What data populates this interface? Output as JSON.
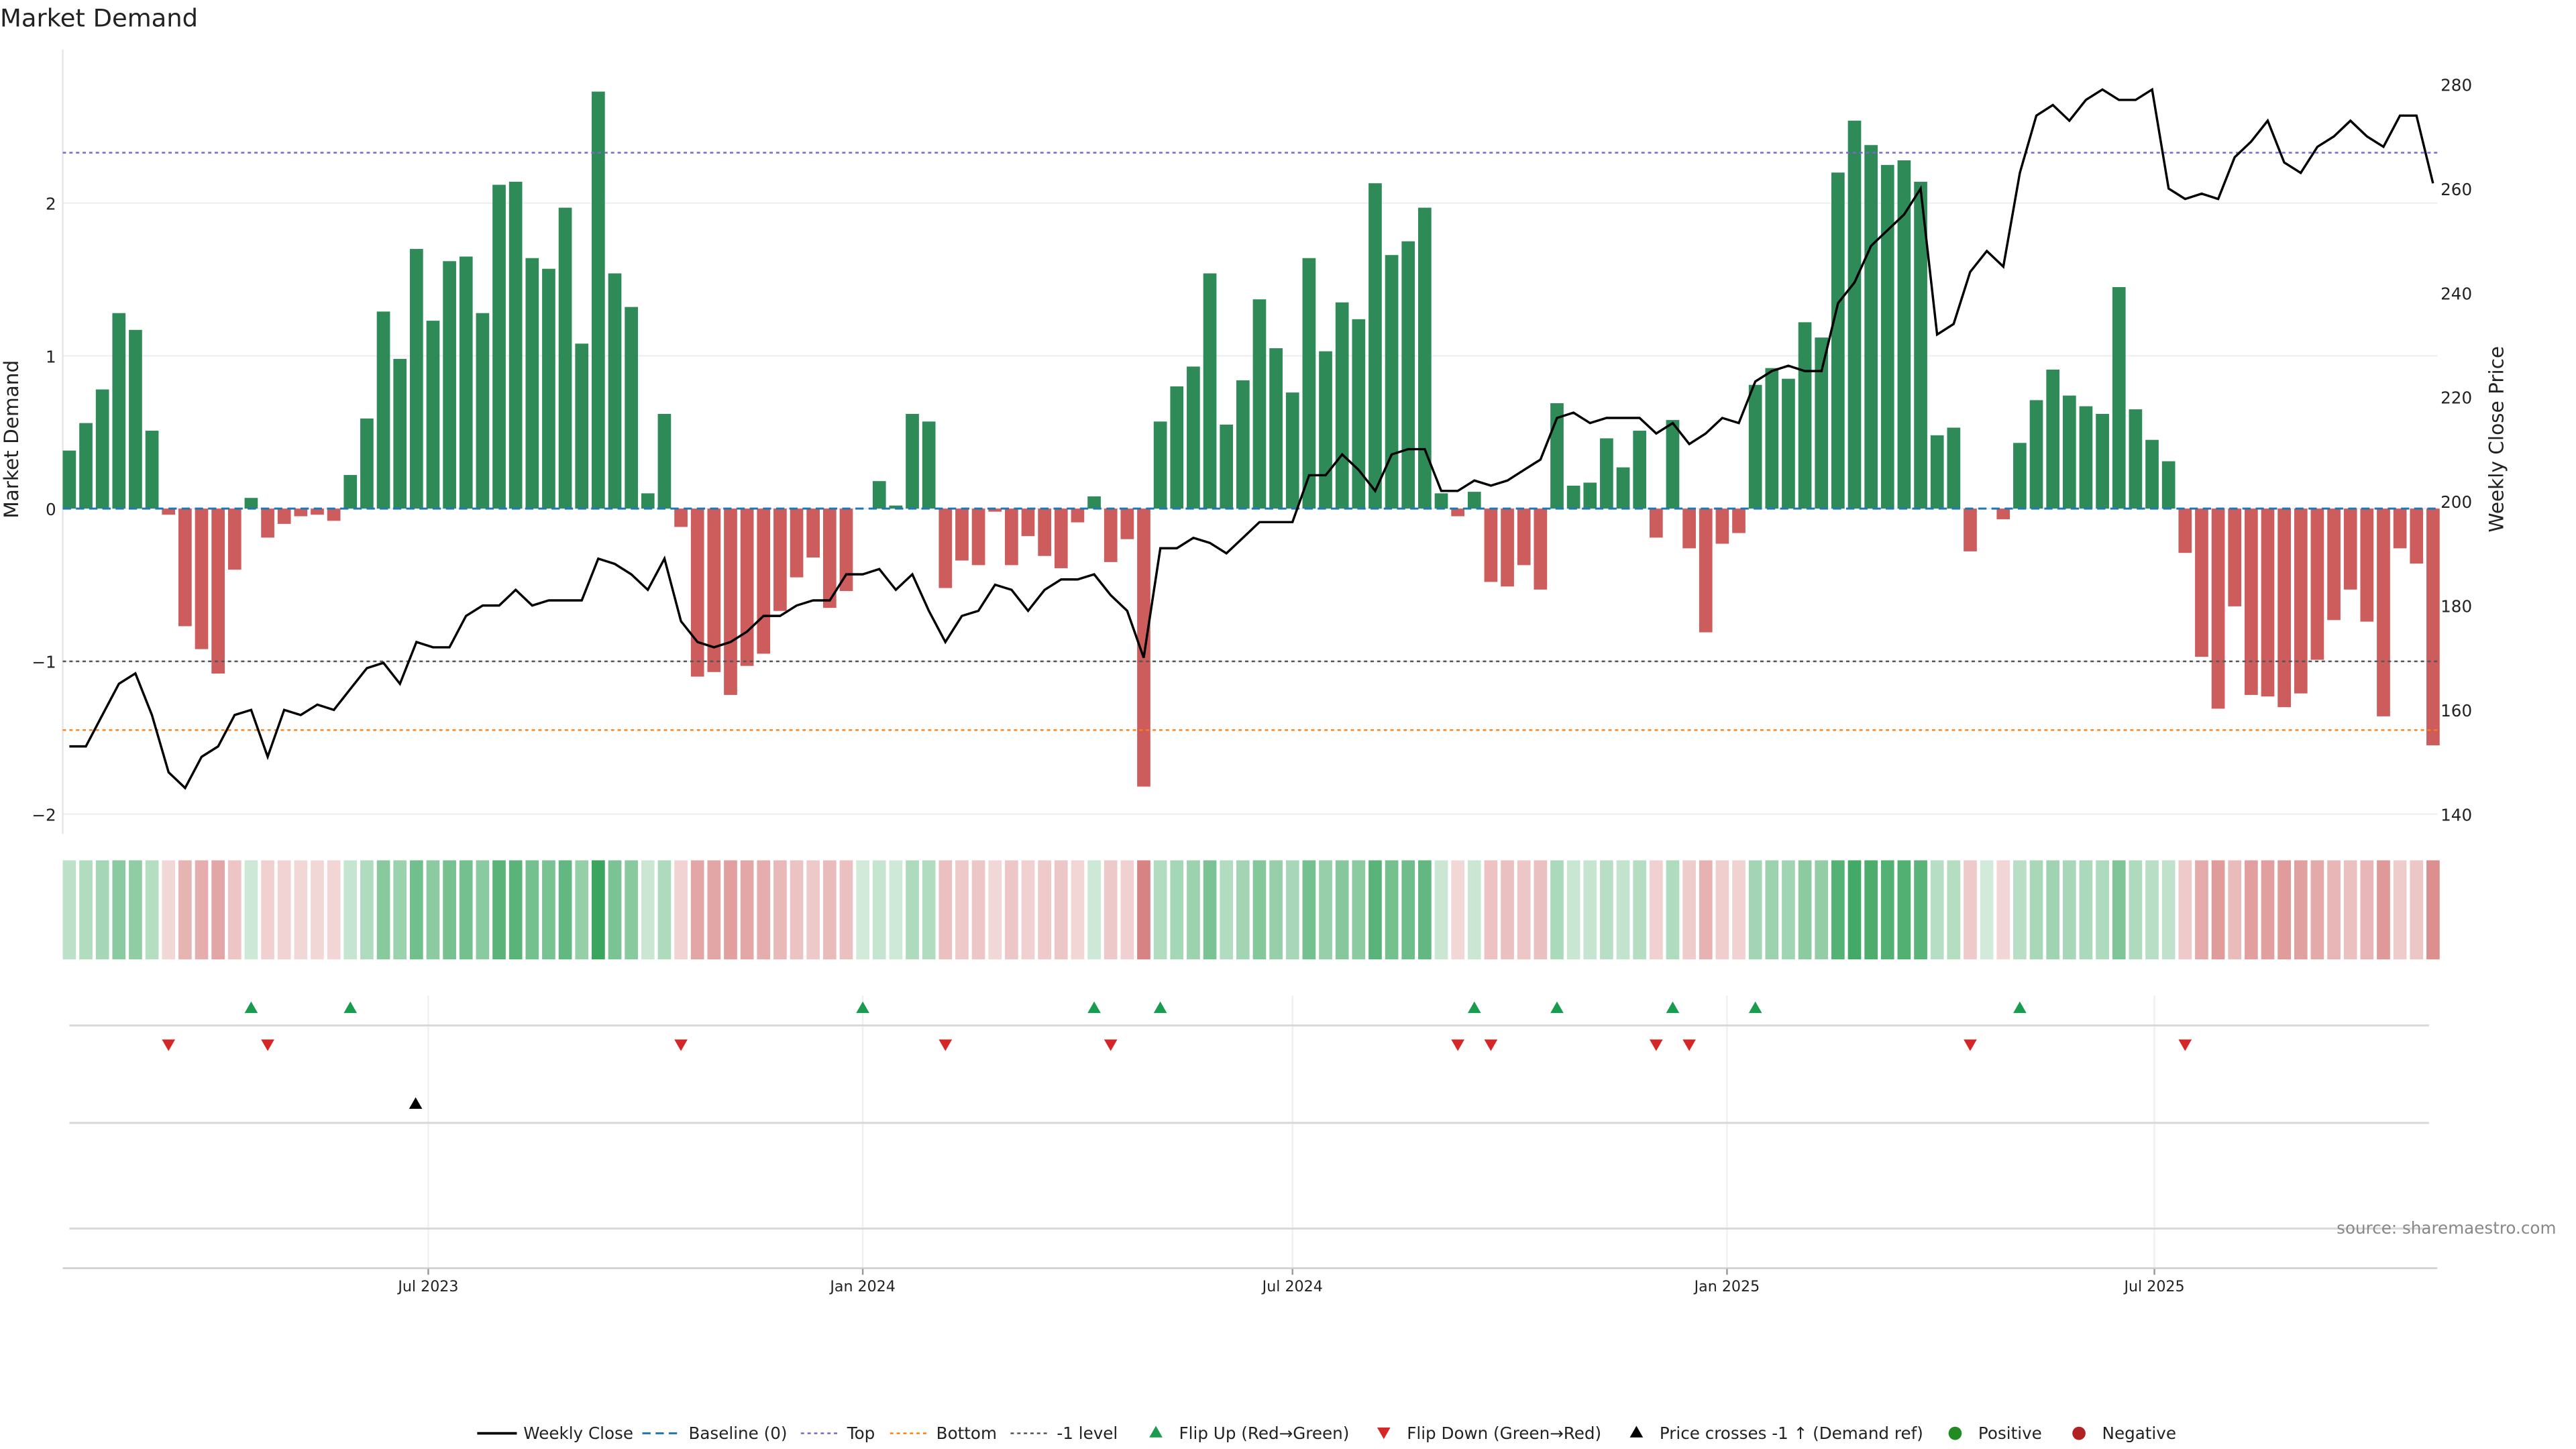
{
  "title": "Market Demand",
  "source": "source: sharemaestro.com",
  "colors": {
    "positive": "#2e8b57",
    "negative": "#cd5c5c",
    "line": "#000000",
    "baseline": "#1f77b4",
    "top": "#7b68c8",
    "bottom": "#ff7f0e",
    "minus1": "#555555",
    "flip_up": "#1a9c50",
    "flip_down": "#d62728",
    "heat_pos": "#2ea055",
    "heat_neg": "#c85050"
  },
  "legend": [
    "Weekly Close",
    "Baseline (0)",
    "Top",
    "Bottom",
    "-1 level",
    "Flip Up (Red→Green)",
    "Flip Down (Green→Red)",
    "Price crosses -1 ↑ (Demand ref)",
    "Positive",
    "Negative"
  ],
  "chart_data": {
    "type": "bar",
    "title": "Market Demand",
    "ylabel": "Market Demand",
    "y2label": "Weekly Close Price",
    "x_start": "2023-01-30",
    "x_step_days": 7,
    "ylim": [
      -2.2,
      2.95
    ],
    "y2lim": [
      140,
      284
    ],
    "yticks": [
      -2,
      -1,
      0,
      1,
      2
    ],
    "ytick_labels": [
      "−2",
      "−1",
      "0",
      "1",
      "2"
    ],
    "y2ticks": [
      140,
      160,
      180,
      200,
      220,
      240,
      260,
      280
    ],
    "y2tick_labels": [
      "140",
      "160",
      "180",
      "200",
      "220",
      "240",
      "260",
      "280"
    ],
    "xticks": [
      {
        "date": "2023-07-01",
        "label": "Jul 2023"
      },
      {
        "date": "2024-01-01",
        "label": "Jan 2024"
      },
      {
        "date": "2024-07-01",
        "label": "Jul 2024"
      },
      {
        "date": "2025-01-01",
        "label": "Jan 2025"
      },
      {
        "date": "2025-07-01",
        "label": "Jul 2025"
      }
    ],
    "levels": {
      "baseline": 0,
      "top": 2.33,
      "bottom": -1.45,
      "minus1": -1
    },
    "demand": [
      0.38,
      0.56,
      0.78,
      1.28,
      1.17,
      0.51,
      -0.04,
      -0.77,
      -0.92,
      -1.08,
      -0.4,
      0.07,
      -0.19,
      -0.1,
      -0.05,
      -0.04,
      -0.08,
      0.22,
      0.59,
      1.29,
      0.98,
      1.7,
      1.23,
      1.62,
      1.65,
      1.28,
      2.12,
      2.14,
      1.64,
      1.57,
      1.97,
      1.08,
      2.73,
      1.54,
      1.32,
      0.1,
      0.62,
      -0.12,
      -1.1,
      -1.07,
      -1.22,
      -1.03,
      -0.95,
      -0.67,
      -0.45,
      -0.32,
      -0.65,
      -0.54,
      0.0,
      0.18,
      0.02,
      0.62,
      0.57,
      -0.52,
      -0.34,
      -0.37,
      -0.02,
      -0.37,
      -0.18,
      -0.31,
      -0.39,
      -0.09,
      0.08,
      -0.35,
      -0.2,
      -1.82,
      0.57,
      0.8,
      0.93,
      1.54,
      0.55,
      0.84,
      1.37,
      1.05,
      0.76,
      1.64,
      1.03,
      1.35,
      1.24,
      2.13,
      1.66,
      1.75,
      1.97,
      0.1,
      -0.05,
      0.11,
      -0.48,
      -0.51,
      -0.37,
      -0.53,
      0.69,
      0.15,
      0.17,
      0.46,
      0.27,
      0.51,
      -0.19,
      0.58,
      -0.26,
      -0.81,
      -0.23,
      -0.16,
      0.81,
      0.92,
      0.85,
      1.22,
      1.12,
      2.2,
      2.54,
      2.38,
      2.25,
      2.28,
      2.14,
      0.48,
      0.53,
      -0.28,
      0.0,
      -0.07,
      0.43,
      0.71,
      0.91,
      0.74,
      0.67,
      0.62,
      1.45,
      0.65,
      0.45,
      0.31,
      -0.29,
      -0.97,
      -1.31,
      -0.64,
      -1.22,
      -1.23,
      -1.3,
      -1.21,
      -0.99,
      -0.73,
      -0.53,
      -0.74,
      -1.36,
      -0.26,
      -0.36,
      -1.55
    ],
    "weekly_close": [
      153,
      153,
      159,
      165,
      167,
      159,
      148,
      145,
      151,
      153,
      159,
      160,
      151,
      160,
      159,
      161,
      160,
      164,
      168,
      169,
      165,
      173,
      172,
      172,
      178,
      180,
      180,
      183,
      180,
      181,
      181,
      181,
      189,
      188,
      186,
      183,
      189,
      177,
      173,
      172,
      173,
      175,
      178,
      178,
      180,
      181,
      181,
      186,
      186,
      187,
      183,
      186,
      179,
      173,
      178,
      179,
      184,
      183,
      179,
      183,
      185,
      185,
      186,
      182,
      179,
      170,
      191,
      191,
      193,
      192,
      190,
      193,
      196,
      196,
      196,
      205,
      205,
      209,
      206,
      202,
      209,
      210,
      210,
      202,
      202,
      204,
      203,
      204,
      206,
      208,
      216,
      217,
      215,
      216,
      216,
      216,
      213,
      215,
      211,
      213,
      216,
      215,
      223,
      225,
      226,
      225,
      225,
      238,
      242,
      249,
      252,
      255,
      260,
      232,
      234,
      244,
      248,
      245,
      263,
      274,
      276,
      273,
      277,
      279,
      277,
      277,
      279,
      260,
      258,
      259,
      258,
      266,
      269,
      273,
      265,
      263,
      268,
      270,
      273,
      270,
      268,
      274,
      274,
      261
    ],
    "flip_up_idx": [
      11,
      17,
      48,
      62,
      66,
      85,
      90,
      97,
      102,
      118
    ],
    "flip_down_idx": [
      6,
      12,
      37,
      53,
      63,
      84,
      86,
      96,
      98,
      115,
      128
    ],
    "price_cross_idx": [
      21
    ]
  }
}
